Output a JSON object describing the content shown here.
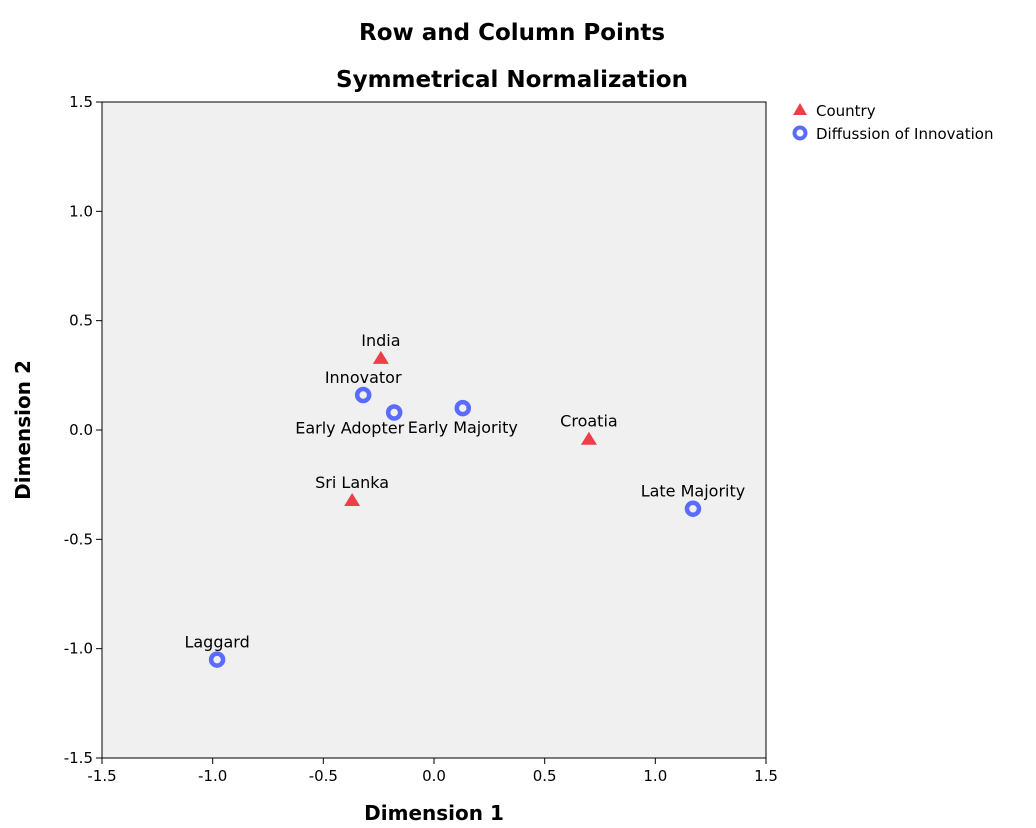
{
  "chart_data": {
    "type": "scatter",
    "title": "Row and Column Points",
    "subtitle": "Symmetrical Normalization",
    "xlabel": "Dimension 1",
    "ylabel": "Dimension 2",
    "xlim": [
      -1.5,
      1.5
    ],
    "ylim": [
      -1.5,
      1.5
    ],
    "xticks": [
      -1.5,
      -1.0,
      -0.5,
      0.0,
      0.5,
      1.0,
      1.5
    ],
    "xtick_labels": [
      "-1.5",
      "-1.0",
      "-0.5",
      "0.0",
      "0.5",
      "1.0",
      "1.5"
    ],
    "yticks": [
      -1.5,
      -1.0,
      -0.5,
      0.0,
      0.5,
      1.0,
      1.5
    ],
    "ytick_labels": [
      "-1.5",
      "-1.0",
      "-0.5",
      "0.0",
      "0.5",
      "1.0",
      "1.5"
    ],
    "grid": false,
    "plot_background": "#f0f0f0",
    "legend_position": "top-right, outside plot",
    "series": [
      {
        "name": "Country",
        "marker": "triangle",
        "color": "#ee3e48",
        "points": [
          {
            "label": "India",
            "x": -0.24,
            "y": 0.33
          },
          {
            "label": "Sri Lanka",
            "x": -0.37,
            "y": -0.32
          },
          {
            "label": "Croatia",
            "x": 0.7,
            "y": -0.04
          }
        ]
      },
      {
        "name": "Diffussion of Innovation",
        "marker": "ring",
        "color": "#5a6cff",
        "points": [
          {
            "label": "Innovator",
            "x": -0.32,
            "y": 0.16
          },
          {
            "label": "Early Adopter",
            "x": -0.18,
            "y": 0.08
          },
          {
            "label": "Early Majority",
            "x": 0.13,
            "y": 0.1
          },
          {
            "label": "Late Majority",
            "x": 1.17,
            "y": -0.36
          },
          {
            "label": "Laggard",
            "x": -0.98,
            "y": -1.05
          }
        ]
      }
    ]
  }
}
